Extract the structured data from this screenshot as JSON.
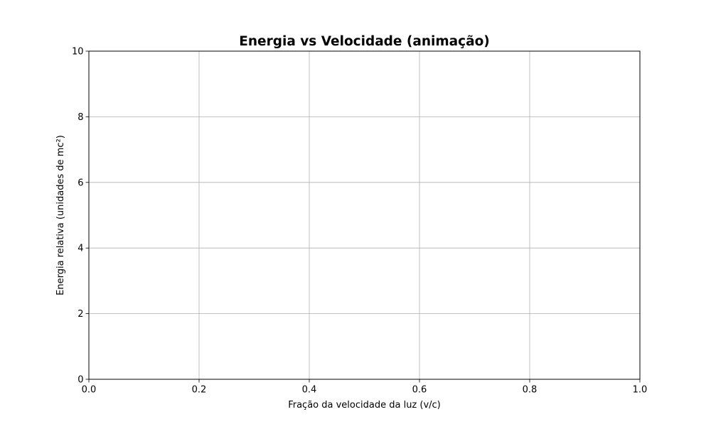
{
  "chart_data": {
    "type": "line",
    "title": "Energia vs Velocidade (animação)",
    "xlabel": "Fração da velocidade da luz (v/c)",
    "ylabel": "Energia relativa (unidades de mc²)",
    "xlim": [
      0.0,
      1.0
    ],
    "ylim": [
      0,
      10
    ],
    "xticks": [
      "0.0",
      "0.2",
      "0.4",
      "0.6",
      "0.8",
      "1.0"
    ],
    "yticks": [
      "0",
      "2",
      "4",
      "6",
      "8",
      "10"
    ],
    "grid": true,
    "series": [],
    "colors": {
      "grid": "#b0b0b0",
      "axes": "#000000",
      "background": "#ffffff"
    }
  }
}
